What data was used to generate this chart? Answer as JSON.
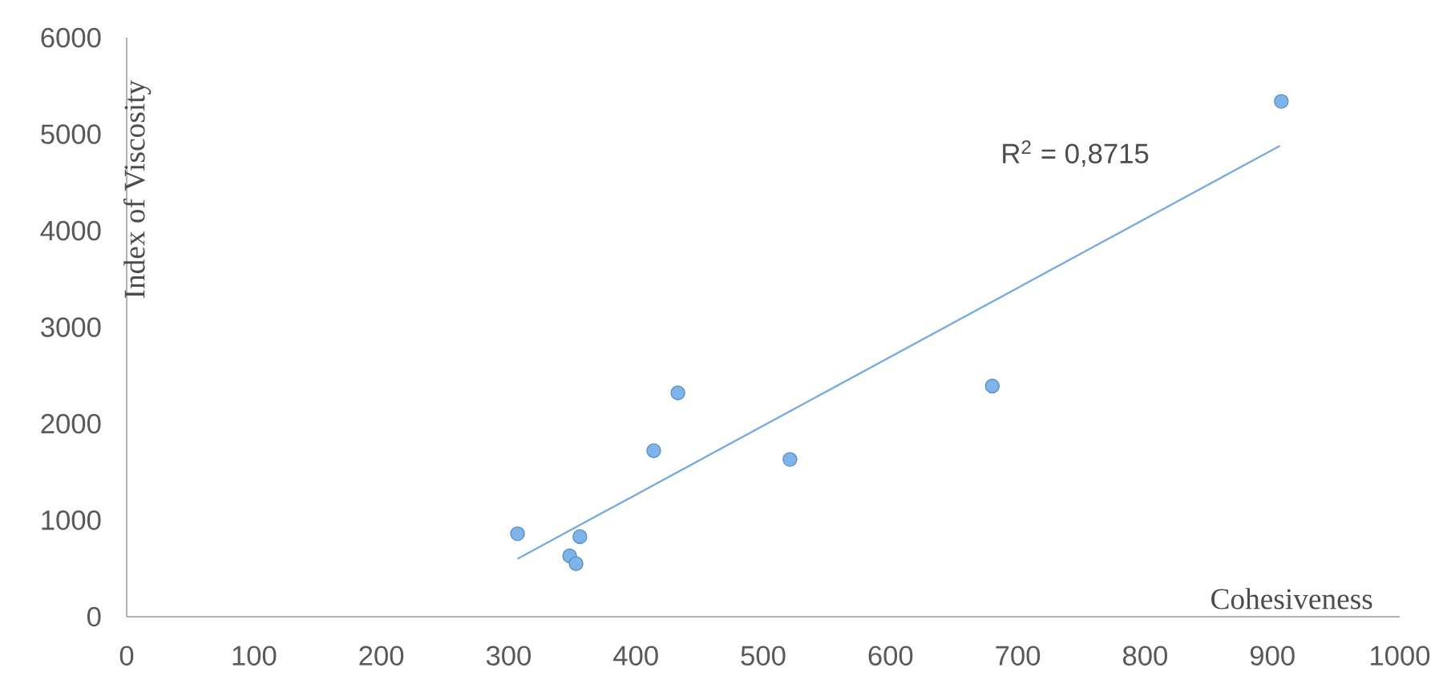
{
  "chart_data": {
    "type": "scatter",
    "xlabel": "Cohesiveness",
    "ylabel": "Index  of Viscosity",
    "series": [
      {
        "marker": "circle",
        "color": "#7eb4ea",
        "x": [
          307,
          348,
          353,
          356,
          414,
          433,
          521,
          680,
          907
        ],
        "values": [
          860,
          630,
          550,
          830,
          1720,
          2320,
          1630,
          2390,
          5340
        ]
      },
      {
        "type": "line",
        "marker": "none",
        "color": "#78ace0",
        "x": [
          307,
          906
        ],
        "values": [
          600,
          4880
        ]
      }
    ],
    "annotations": [
      "R$^{2}$ = 0,8715"
    ],
    "xlim": [
      0,
      1000
    ],
    "ylim": [
      0,
      6000
    ],
    "xticks": [
      0,
      100,
      200,
      300,
      400,
      500,
      600,
      700,
      800,
      900,
      1000
    ],
    "yticks": [
      0,
      1000,
      2000,
      3000,
      4000,
      5000,
      6000
    ],
    "grid": false
  }
}
